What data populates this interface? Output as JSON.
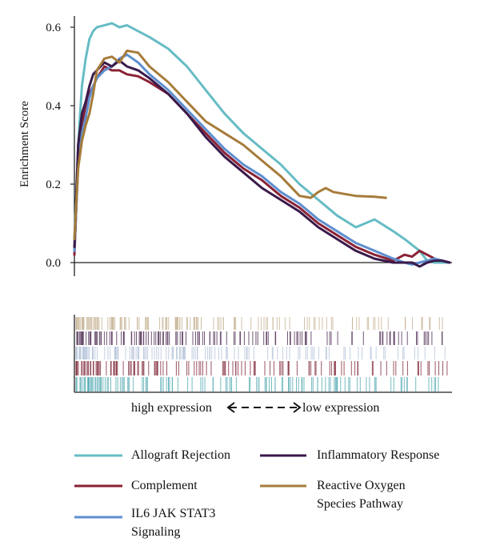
{
  "chart_data": {
    "type": "line",
    "ylabel": "Enrichment Score",
    "ylim": [
      -0.03,
      0.63
    ],
    "y_ticks": [
      "0.0",
      "0.2",
      "0.4",
      "0.6"
    ],
    "y_tick_values": [
      0.0,
      0.2,
      0.4,
      0.6
    ],
    "x_range": [
      0,
      1
    ],
    "expression_axis": {
      "left": "high expression",
      "right": "low expression"
    },
    "series": [
      {
        "name": "Allograft Rejection",
        "color": "#66bcc4",
        "x": [
          0.0,
          0.01,
          0.02,
          0.03,
          0.04,
          0.05,
          0.06,
          0.08,
          0.1,
          0.12,
          0.14,
          0.17,
          0.2,
          0.25,
          0.3,
          0.35,
          0.4,
          0.45,
          0.5,
          0.55,
          0.6,
          0.65,
          0.7,
          0.75,
          0.8,
          0.85,
          0.88,
          0.9,
          0.92,
          0.94,
          0.96,
          0.98,
          1.0
        ],
        "y": [
          0.06,
          0.3,
          0.45,
          0.52,
          0.57,
          0.59,
          0.6,
          0.605,
          0.61,
          0.6,
          0.605,
          0.59,
          0.575,
          0.545,
          0.5,
          0.44,
          0.38,
          0.33,
          0.29,
          0.25,
          0.2,
          0.16,
          0.12,
          0.09,
          0.11,
          0.08,
          0.06,
          0.045,
          0.03,
          0.005,
          0.0,
          0.0,
          0.0
        ]
      },
      {
        "name": "Complement",
        "color": "#8a2235",
        "x": [
          0.0,
          0.01,
          0.02,
          0.03,
          0.04,
          0.05,
          0.06,
          0.08,
          0.1,
          0.12,
          0.14,
          0.17,
          0.2,
          0.25,
          0.3,
          0.35,
          0.4,
          0.45,
          0.5,
          0.55,
          0.6,
          0.65,
          0.7,
          0.75,
          0.8,
          0.85,
          0.88,
          0.9,
          0.92,
          0.94,
          0.96,
          0.98,
          1.0
        ],
        "y": [
          0.02,
          0.26,
          0.35,
          0.4,
          0.43,
          0.45,
          0.47,
          0.5,
          0.49,
          0.49,
          0.48,
          0.475,
          0.46,
          0.43,
          0.38,
          0.33,
          0.28,
          0.24,
          0.21,
          0.17,
          0.14,
          0.1,
          0.07,
          0.04,
          0.02,
          0.005,
          0.02,
          0.015,
          0.03,
          0.02,
          0.01,
          0.005,
          0.0
        ]
      },
      {
        "name": "IL6 JAK STAT3 Signaling",
        "color": "#5e8fcf",
        "x": [
          0.0,
          0.01,
          0.02,
          0.03,
          0.04,
          0.05,
          0.06,
          0.08,
          0.1,
          0.12,
          0.14,
          0.17,
          0.2,
          0.25,
          0.3,
          0.35,
          0.4,
          0.45,
          0.5,
          0.55,
          0.6,
          0.65,
          0.7,
          0.75,
          0.8,
          0.85,
          0.88,
          0.9,
          0.92,
          0.94,
          0.96,
          0.98,
          1.0
        ],
        "y": [
          0.03,
          0.25,
          0.33,
          0.37,
          0.42,
          0.45,
          0.47,
          0.49,
          0.5,
          0.52,
          0.53,
          0.51,
          0.48,
          0.44,
          0.39,
          0.34,
          0.29,
          0.25,
          0.22,
          0.18,
          0.15,
          0.11,
          0.08,
          0.05,
          0.03,
          0.01,
          0.0,
          -0.005,
          0.0,
          0.005,
          0.01,
          0.005,
          0.0
        ]
      },
      {
        "name": "Inflammatory Response",
        "color": "#3a1a4a",
        "x": [
          0.0,
          0.01,
          0.02,
          0.03,
          0.04,
          0.05,
          0.06,
          0.08,
          0.1,
          0.12,
          0.14,
          0.17,
          0.2,
          0.25,
          0.3,
          0.35,
          0.4,
          0.45,
          0.5,
          0.55,
          0.6,
          0.65,
          0.7,
          0.75,
          0.8,
          0.85,
          0.88,
          0.9,
          0.92,
          0.94,
          0.96,
          0.98,
          1.0
        ],
        "y": [
          0.04,
          0.3,
          0.38,
          0.41,
          0.45,
          0.48,
          0.49,
          0.51,
          0.5,
          0.515,
          0.5,
          0.49,
          0.47,
          0.43,
          0.38,
          0.32,
          0.27,
          0.23,
          0.19,
          0.16,
          0.13,
          0.09,
          0.06,
          0.03,
          0.01,
          0.0,
          0.0,
          0.0,
          -0.01,
          0.0,
          0.005,
          0.005,
          0.0
        ]
      },
      {
        "name": "Reactive Oxygen Species Pathway",
        "color": "#a67c3a",
        "x": [
          0.0,
          0.01,
          0.02,
          0.03,
          0.04,
          0.05,
          0.06,
          0.08,
          0.1,
          0.12,
          0.14,
          0.17,
          0.2,
          0.25,
          0.3,
          0.35,
          0.4,
          0.45,
          0.5,
          0.55,
          0.6,
          0.63,
          0.65,
          0.67,
          0.69,
          0.72,
          0.75,
          0.8,
          0.83
        ],
        "y": [
          0.06,
          0.24,
          0.31,
          0.35,
          0.38,
          0.43,
          0.49,
          0.52,
          0.525,
          0.51,
          0.54,
          0.535,
          0.5,
          0.46,
          0.41,
          0.36,
          0.33,
          0.3,
          0.26,
          0.22,
          0.17,
          0.165,
          0.18,
          0.19,
          0.18,
          0.175,
          0.17,
          0.168,
          0.165
        ]
      }
    ],
    "legend_rows": [
      {
        "name": "Allograft Rejection",
        "lines": [
          "Allograft Rejection"
        ],
        "color": "#66bcc4"
      },
      {
        "name": "Complement",
        "lines": [
          "Complement"
        ],
        "color": "#8a2235"
      },
      {
        "name": "IL6 JAK STAT3 Signaling",
        "lines": [
          "IL6 JAK STAT3",
          "Signaling"
        ],
        "color": "#5e8fcf"
      },
      {
        "name": "Inflammatory Response",
        "lines": [
          "Inflammatory Response"
        ],
        "color": "#3a1a4a"
      },
      {
        "name": "Reactive Oxygen Species Pathway",
        "lines": [
          "Reactive Oxygen",
          "Species Pathway"
        ],
        "color": "#a67c3a"
      }
    ],
    "grid": false,
    "legend_placement": "bottom"
  }
}
